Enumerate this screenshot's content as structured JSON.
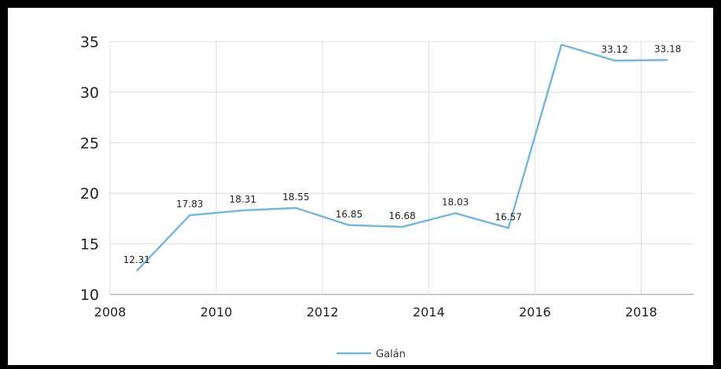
{
  "chart_data": {
    "type": "line",
    "title": "",
    "xlabel": "",
    "ylabel": "",
    "xlim": [
      2008,
      2019
    ],
    "ylim": [
      10,
      35
    ],
    "x_ticks": [
      "2008",
      "2010",
      "2012",
      "2014",
      "2016",
      "2018"
    ],
    "y_ticks": [
      "10",
      "15",
      "20",
      "25",
      "30",
      "35"
    ],
    "grid": true,
    "legend_position": "bottom",
    "series": [
      {
        "name": "Galán",
        "color": "#74b9d6",
        "x": [
          2008.5,
          2009.5,
          2010.5,
          2011.5,
          2012.5,
          2013.5,
          2014.5,
          2015.5,
          2016.5,
          2017.5,
          2018.5
        ],
        "values": [
          12.31,
          17.83,
          18.31,
          18.55,
          16.85,
          16.68,
          18.03,
          16.57,
          34.7,
          33.12,
          33.18
        ],
        "labels": [
          "12.31",
          "17.83",
          "18.31",
          "18.55",
          "16.85",
          "16.68",
          "18.03",
          "16.57",
          "",
          "33.12",
          "33.18"
        ]
      }
    ]
  }
}
